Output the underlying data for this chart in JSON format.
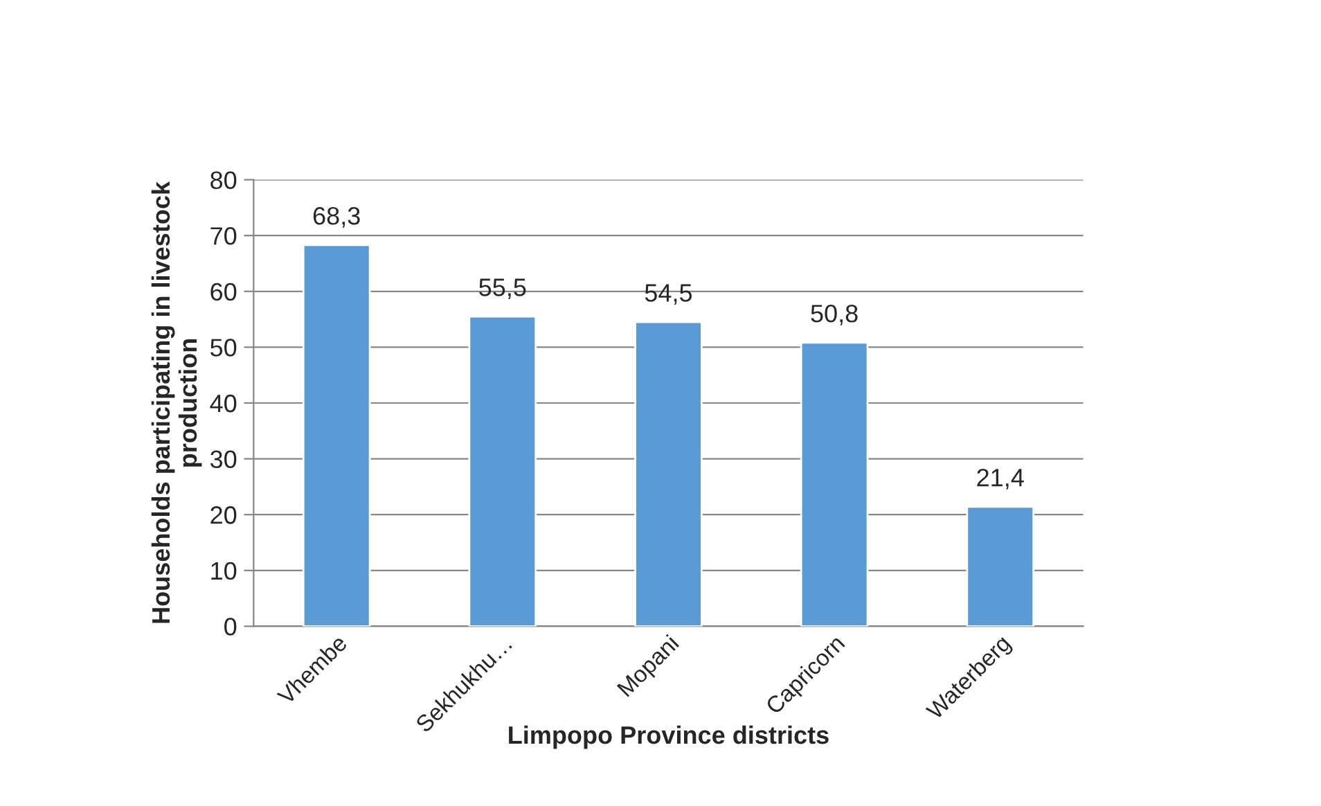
{
  "chart_data": {
    "type": "bar",
    "xlabel": "Limpopo Province districts",
    "ylabel": "Households participating in livestock\nproduction",
    "categories": [
      "Vhembe",
      "Sekhukhu…",
      "Mopani",
      "Capricorn",
      "Waterberg"
    ],
    "values": [
      68.3,
      55.5,
      54.5,
      50.8,
      21.4
    ],
    "value_labels": [
      "68,3",
      "55,5",
      "54,5",
      "50,8",
      "21,4"
    ],
    "color": "#5b9bd5",
    "ylim": [
      0,
      80
    ],
    "yticks": [
      0,
      10,
      20,
      30,
      40,
      50,
      60,
      70,
      80
    ],
    "grid": "y",
    "legend": false
  }
}
